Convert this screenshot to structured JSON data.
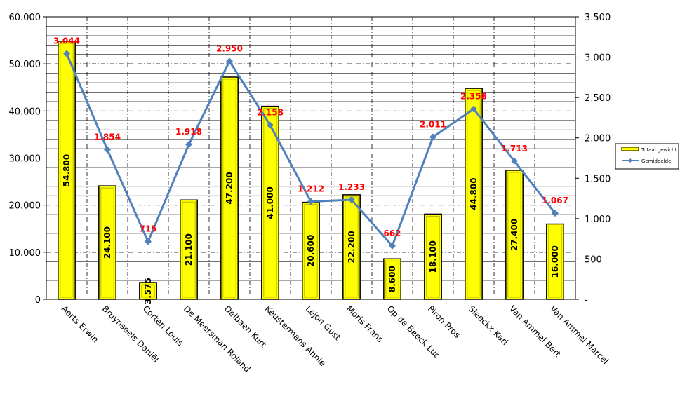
{
  "chart_data": {
    "type": "bar",
    "categories": [
      "Aerts Erwin",
      "Bruynseels Daniël",
      "Corten Louis",
      "De Meersman Roland",
      "Delbaen Kurt",
      "Keustermans Annie",
      "Lejon Gust",
      "Moris Frans",
      "Op de Beeck Luc",
      "Piron Pros",
      "Sleeckx Karl",
      "Van Ammel Bert",
      "Van Ammel Marcel"
    ],
    "series": [
      {
        "name": "Totaal gewicht",
        "type": "bar",
        "axis": "left",
        "color": "#ffff00",
        "values": [
          54800,
          24100,
          3575,
          21100,
          47200,
          41000,
          20600,
          22200,
          8600,
          18100,
          44800,
          27400,
          16000
        ],
        "labels": [
          "54.800",
          "24.100",
          "3.575",
          "21.100",
          "47.200",
          "41.000",
          "20.600",
          "22.200",
          "8.600",
          "18.100",
          "44.800",
          "27.400",
          "16.000"
        ]
      },
      {
        "name": "Gemiddelde",
        "type": "line",
        "axis": "right",
        "color": "#4f81bd",
        "label_color": "#ff0000",
        "values": [
          3044,
          1854,
          715,
          1918,
          2950,
          2158,
          1212,
          1233,
          662,
          2011,
          2358,
          1713,
          1067
        ],
        "labels": [
          "3.044",
          "1.854",
          "715",
          "1.918",
          "2.950",
          "2.158",
          "1.212",
          "1.233",
          "662",
          "2.011",
          "2.358",
          "1.713",
          "1.067"
        ]
      }
    ],
    "y_left": {
      "ylim": [
        0,
        60000
      ],
      "ticks": [
        0,
        10000,
        20000,
        30000,
        40000,
        50000,
        60000
      ],
      "tick_labels": [
        "0",
        "10.000",
        "20.000",
        "30.000",
        "40.000",
        "50.000",
        "60.000"
      ]
    },
    "y_right": {
      "ylim": [
        0,
        3500
      ],
      "ticks": [
        0,
        500,
        1000,
        1500,
        2000,
        2500,
        3000,
        3500
      ],
      "tick_labels": [
        "-",
        "500",
        "1.000",
        "1.500",
        "2.000",
        "2.500",
        "3.000",
        "3.500"
      ]
    },
    "grid": true,
    "legend": "right"
  }
}
